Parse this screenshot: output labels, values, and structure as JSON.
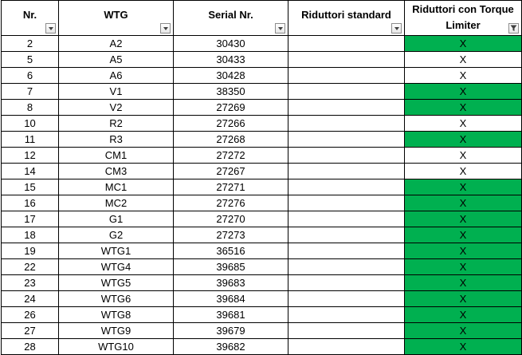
{
  "columns": [
    {
      "label": "Nr.",
      "filter_icon": "dropdown-arrow-icon"
    },
    {
      "label": "WTG",
      "filter_icon": "dropdown-arrow-icon"
    },
    {
      "label": "Serial Nr.",
      "filter_icon": "dropdown-arrow-icon"
    },
    {
      "label": "Riduttori standard",
      "filter_icon": "dropdown-arrow-icon"
    },
    {
      "label": "Riduttori con Torque Limiter",
      "filter_icon": "filter-funnel-icon"
    }
  ],
  "highlight_color": "#00b050",
  "rows": [
    {
      "nr": "2",
      "wtg": "A2",
      "serial": "30430",
      "std": "",
      "torque": "X",
      "green": true
    },
    {
      "nr": "5",
      "wtg": "A5",
      "serial": "30433",
      "std": "",
      "torque": "X",
      "green": false
    },
    {
      "nr": "6",
      "wtg": "A6",
      "serial": "30428",
      "std": "",
      "torque": "X",
      "green": false
    },
    {
      "nr": "7",
      "wtg": "V1",
      "serial": "38350",
      "std": "",
      "torque": "X",
      "green": true
    },
    {
      "nr": "8",
      "wtg": "V2",
      "serial": "27269",
      "std": "",
      "torque": "X",
      "green": true
    },
    {
      "nr": "10",
      "wtg": "R2",
      "serial": "27266",
      "std": "",
      "torque": "X",
      "green": false
    },
    {
      "nr": "11",
      "wtg": "R3",
      "serial": "27268",
      "std": "",
      "torque": "X",
      "green": true
    },
    {
      "nr": "12",
      "wtg": "CM1",
      "serial": "27272",
      "std": "",
      "torque": "X",
      "green": false
    },
    {
      "nr": "14",
      "wtg": "CM3",
      "serial": "27267",
      "std": "",
      "torque": "X",
      "green": false
    },
    {
      "nr": "15",
      "wtg": "MC1",
      "serial": "27271",
      "std": "",
      "torque": "X",
      "green": true
    },
    {
      "nr": "16",
      "wtg": "MC2",
      "serial": "27276",
      "std": "",
      "torque": "X",
      "green": true
    },
    {
      "nr": "17",
      "wtg": "G1",
      "serial": "27270",
      "std": "",
      "torque": "X",
      "green": true
    },
    {
      "nr": "18",
      "wtg": "G2",
      "serial": "27273",
      "std": "",
      "torque": "X",
      "green": true
    },
    {
      "nr": "19",
      "wtg": "WTG1",
      "serial": "36516",
      "std": "",
      "torque": "X",
      "green": true
    },
    {
      "nr": "22",
      "wtg": "WTG4",
      "serial": "39685",
      "std": "",
      "torque": "X",
      "green": true
    },
    {
      "nr": "23",
      "wtg": "WTG5",
      "serial": "39683",
      "std": "",
      "torque": "X",
      "green": true
    },
    {
      "nr": "24",
      "wtg": "WTG6",
      "serial": "39684",
      "std": "",
      "torque": "X",
      "green": true
    },
    {
      "nr": "26",
      "wtg": "WTG8",
      "serial": "39681",
      "std": "",
      "torque": "X",
      "green": true
    },
    {
      "nr": "27",
      "wtg": "WTG9",
      "serial": "39679",
      "std": "",
      "torque": "X",
      "green": true
    },
    {
      "nr": "28",
      "wtg": "WTG10",
      "serial": "39682",
      "std": "",
      "torque": "X",
      "green": true
    }
  ]
}
